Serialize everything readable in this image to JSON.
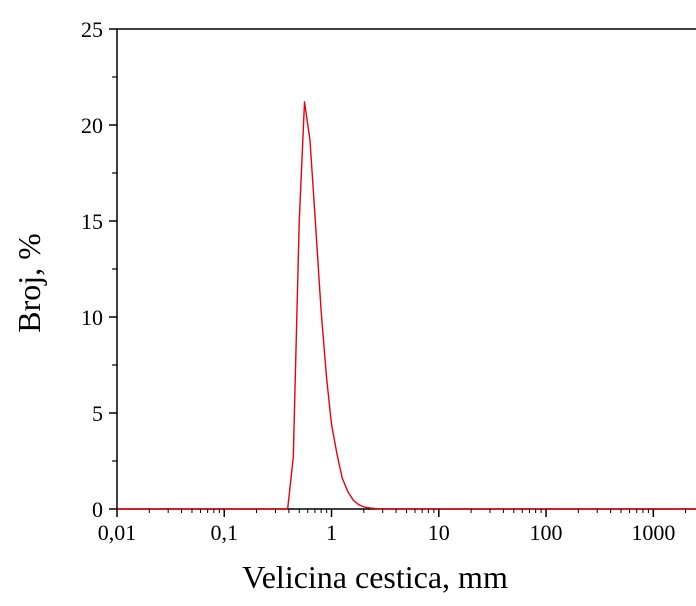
{
  "chart_data": {
    "type": "line",
    "title": "",
    "xlabel": "Velicina cestica, mm",
    "ylabel": "Broj, %",
    "x_scale": "log",
    "xlim": [
      0.01,
      2500
    ],
    "ylim": [
      0,
      25
    ],
    "x_ticks": [
      0.01,
      0.1,
      1,
      10,
      100,
      1000
    ],
    "x_tick_labels": [
      "0,01",
      "0,1",
      "1",
      "10",
      "100",
      "1000"
    ],
    "y_ticks": [
      0,
      5,
      10,
      15,
      20,
      25
    ],
    "y_tick_labels": [
      "0",
      "5",
      "10",
      "15",
      "20",
      "25"
    ],
    "grid": false,
    "legend": "none",
    "series": [
      {
        "color": "#e8000b",
        "x": [
          0.01,
          0.39,
          0.44,
          0.5,
          0.56,
          0.63,
          0.71,
          0.8,
          0.9,
          1.0,
          1.13,
          1.26,
          1.42,
          1.6,
          1.8,
          2.0,
          2.3,
          2.6,
          3.0,
          3.5,
          5,
          10,
          100,
          1000,
          2500
        ],
        "y": [
          0,
          0,
          2.7,
          15.0,
          21.2,
          19.2,
          14.8,
          10.3,
          6.8,
          4.4,
          2.8,
          1.6,
          0.9,
          0.45,
          0.22,
          0.11,
          0.05,
          0.02,
          0.01,
          0,
          0,
          0,
          0,
          0,
          0
        ]
      }
    ]
  }
}
